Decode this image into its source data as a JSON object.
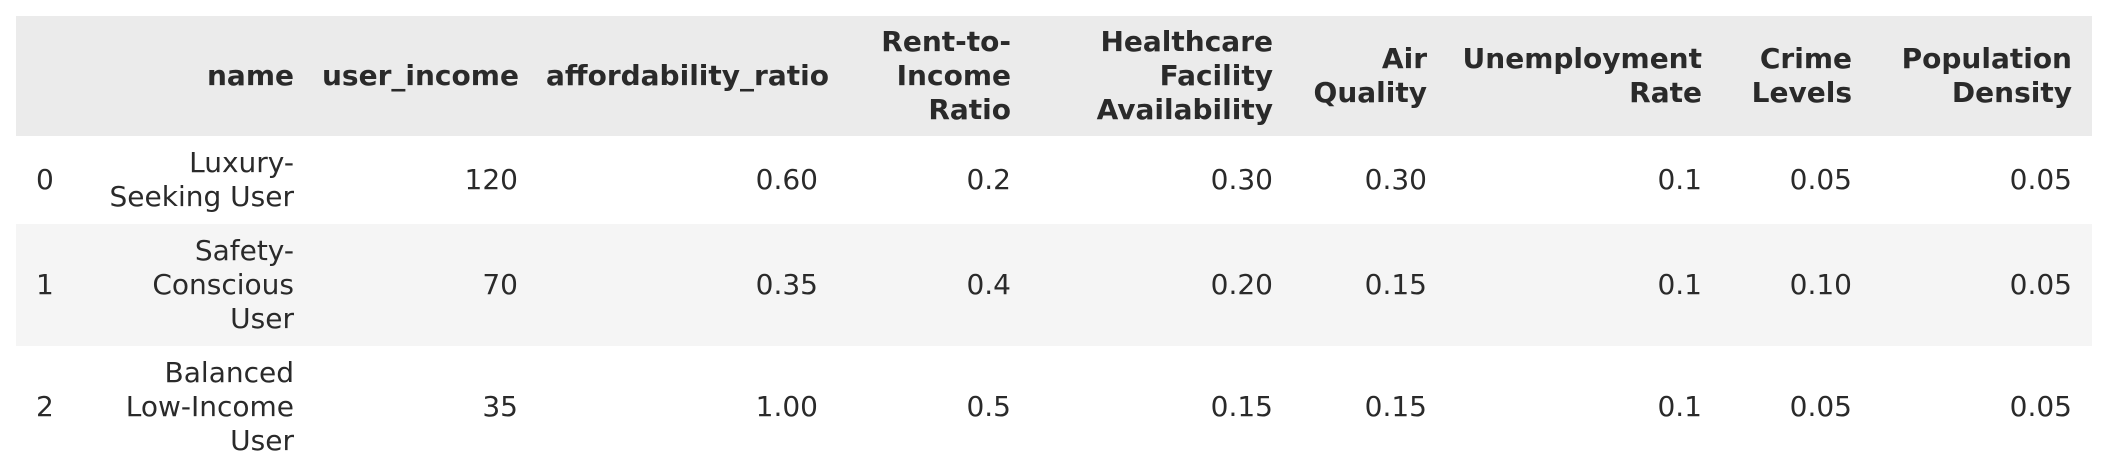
{
  "table": {
    "columns": [
      "",
      "name",
      "user_income",
      "affordability_ratio",
      "Rent-to-Income Ratio",
      "Healthcare Facility Availability",
      "Air Quality",
      "Unemployment Rate",
      "Crime Levels",
      "Population Density"
    ],
    "rows": [
      [
        "0",
        "Luxury-Seeking User",
        "120",
        "0.60",
        "0.2",
        "0.30",
        "0.30",
        "0.1",
        "0.05",
        "0.05"
      ],
      [
        "1",
        "Safety-Conscious User",
        "70",
        "0.35",
        "0.4",
        "0.20",
        "0.15",
        "0.1",
        "0.10",
        "0.05"
      ],
      [
        "2",
        "Balanced Low-Income User",
        "35",
        "1.00",
        "0.5",
        "0.15",
        "0.15",
        "0.1",
        "0.05",
        "0.05"
      ]
    ]
  }
}
